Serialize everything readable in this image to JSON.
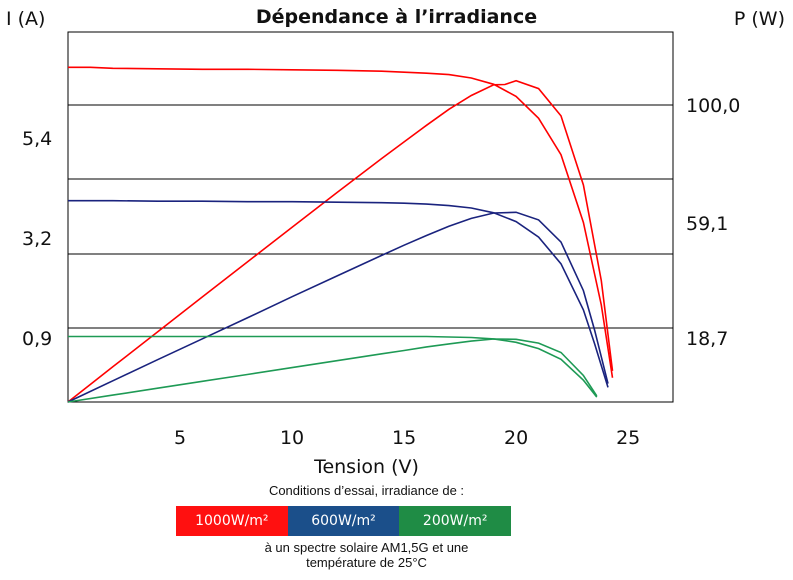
{
  "chart_data": {
    "type": "line",
    "title": "Dépendance à l’irradiance",
    "xlabel": "Tension (V)",
    "ylabel_left": "I (A)",
    "ylabel_right": "P (W)",
    "xlim": [
      0,
      27
    ],
    "x_ticks": [
      "5",
      "10",
      "15",
      "20",
      "25"
    ],
    "y_left_ticks": [
      "0,9",
      "3,2",
      "5,4"
    ],
    "y_right_ticks": [
      "18,7",
      "59,1",
      "100,0"
    ],
    "grid": true,
    "series": [
      {
        "name": "1000W/m²",
        "color": "#ff0000",
        "iv": {
          "x": [
            0,
            1,
            2,
            4,
            6,
            8,
            10,
            12,
            14,
            15,
            16,
            17,
            18,
            19,
            20,
            21,
            22,
            23,
            23.8,
            24.3
          ],
          "y": [
            6.9,
            6.9,
            6.88,
            6.87,
            6.86,
            6.86,
            6.85,
            6.84,
            6.82,
            6.8,
            6.78,
            6.75,
            6.68,
            6.55,
            6.3,
            5.85,
            5.1,
            3.7,
            2.0,
            0.5
          ]
        },
        "pv": {
          "x": [
            0,
            2,
            4,
            6,
            8,
            10,
            12,
            14,
            15,
            16,
            17,
            18,
            19,
            19.5,
            20,
            21,
            22,
            23,
            23.8,
            24.3
          ],
          "y": [
            0,
            13.8,
            27.5,
            41.2,
            54.9,
            68.5,
            82.1,
            95.5,
            102,
            108.5,
            114.8,
            120.2,
            124.4,
            124.5,
            126,
            122.9,
            112.2,
            85.1,
            47.6,
            12.2
          ]
        }
      },
      {
        "name": "600W/m²",
        "color": "#1a237e",
        "iv": {
          "x": [
            0,
            2,
            4,
            6,
            8,
            10,
            12,
            14,
            15,
            16,
            17,
            18,
            19,
            20,
            21,
            22,
            23,
            23.5,
            24.1
          ],
          "y": [
            4.15,
            4.15,
            4.14,
            4.14,
            4.13,
            4.13,
            4.12,
            4.11,
            4.1,
            4.08,
            4.05,
            4.0,
            3.9,
            3.72,
            3.4,
            2.85,
            1.9,
            1.2,
            0.3
          ]
        },
        "pv": {
          "x": [
            0,
            2,
            4,
            6,
            8,
            10,
            12,
            14,
            15,
            16,
            17,
            18,
            19,
            20,
            21,
            22,
            23,
            23.5,
            24.1
          ],
          "y": [
            0,
            8.3,
            16.6,
            24.8,
            33,
            41.3,
            49.4,
            57.5,
            61.5,
            65.3,
            68.9,
            72,
            74.1,
            74.4,
            71.4,
            62.7,
            43.7,
            28.2,
            7.2
          ]
        }
      },
      {
        "name": "200W/m²",
        "color": "#1e9a55",
        "iv": {
          "x": [
            0,
            2,
            4,
            6,
            8,
            10,
            12,
            14,
            15,
            16,
            17,
            18,
            19,
            20,
            21,
            22,
            23,
            23.6
          ],
          "y": [
            1.35,
            1.35,
            1.35,
            1.35,
            1.35,
            1.35,
            1.35,
            1.35,
            1.35,
            1.35,
            1.34,
            1.33,
            1.3,
            1.23,
            1.1,
            0.88,
            0.45,
            0.1
          ]
        },
        "pv": {
          "x": [
            0,
            2,
            4,
            6,
            8,
            10,
            12,
            14,
            15,
            16,
            17,
            18,
            19,
            20,
            21,
            22,
            23,
            23.6
          ],
          "y": [
            0,
            2.7,
            5.4,
            8.1,
            10.8,
            13.5,
            16.2,
            18.9,
            20.2,
            21.6,
            22.8,
            23.9,
            24.7,
            24.6,
            23.1,
            19.4,
            10.4,
            2.4
          ]
        }
      }
    ]
  },
  "captions": {
    "conditions": "Conditions d’essai, irradiance de :",
    "footnote_line1": "à un spectre solaire AM1,5G et une",
    "footnote_line2": "température de 25°C"
  },
  "legend": [
    {
      "label": "1000W/m²",
      "color": "#ff0000"
    },
    {
      "label": "600W/m²",
      "color": "#1b4f8a"
    },
    {
      "label": "200W/m²",
      "color": "#1f8c45"
    }
  ]
}
